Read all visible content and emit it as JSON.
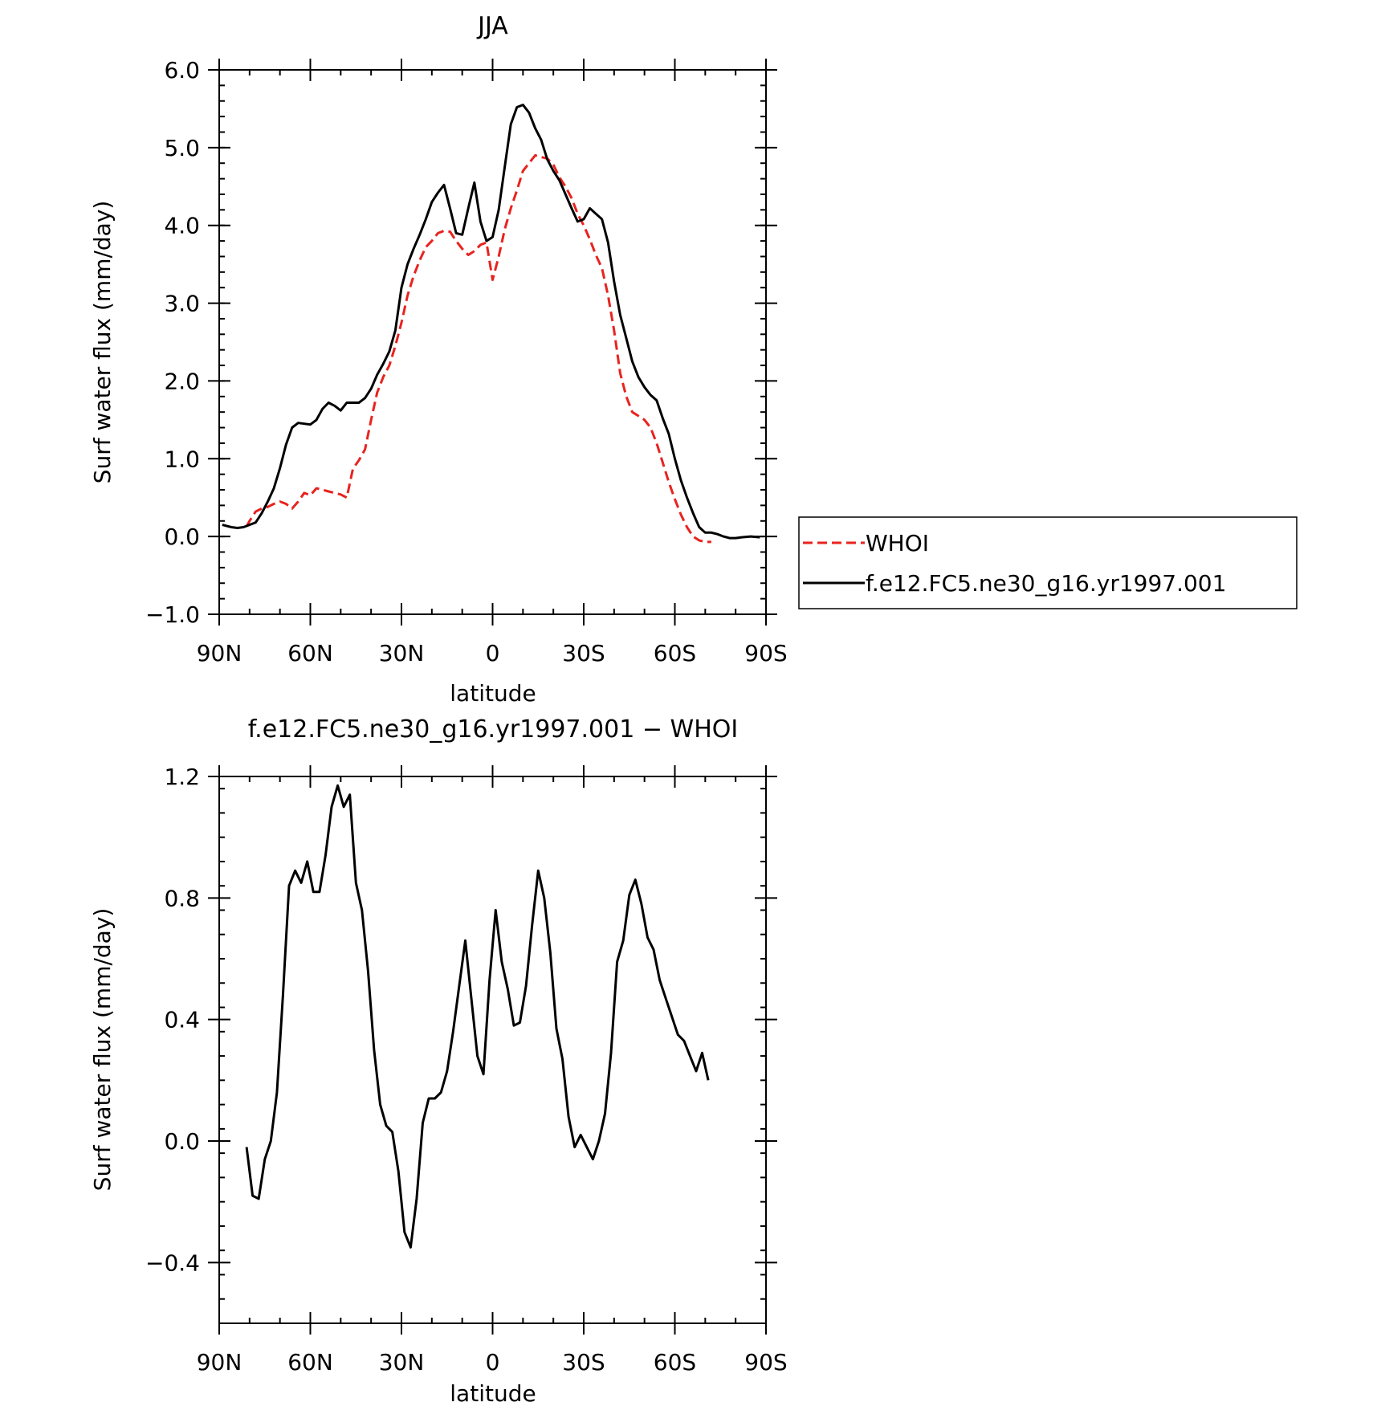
{
  "chart_data": [
    {
      "type": "line",
      "title": "JJA",
      "xlabel": "latitude",
      "ylabel": "Surf water flux (mm/day)",
      "xlim": [
        90,
        -90
      ],
      "ylim": [
        -1.0,
        6.0
      ],
      "xticks": [
        90,
        60,
        30,
        0,
        -30,
        -60,
        -90
      ],
      "xtick_labels": [
        "90N",
        "60N",
        "30N",
        "0",
        "30S",
        "60S",
        "90S"
      ],
      "yticks": [
        -1.0,
        0.0,
        1.0,
        2.0,
        3.0,
        4.0,
        5.0,
        6.0
      ],
      "ytick_labels": [
        "−1.0",
        "0.0",
        "1.0",
        "2.0",
        "3.0",
        "4.0",
        "5.0",
        "6.0"
      ],
      "legend": {
        "placement": "right"
      },
      "series": [
        {
          "name": "WHOI",
          "color": "#e8231f",
          "style": "dashed",
          "x": [
            81,
            80,
            78,
            76,
            74,
            72,
            70,
            68,
            66,
            64,
            62,
            60,
            58,
            56,
            54,
            52,
            50,
            48,
            46,
            44,
            42,
            40,
            38,
            36,
            34,
            32,
            30,
            28,
            26,
            24,
            22,
            20,
            18,
            16,
            14,
            12,
            10,
            8,
            6,
            4,
            2,
            0,
            -2,
            -4,
            -6,
            -8,
            -10,
            -12,
            -14,
            -16,
            -18,
            -20,
            -22,
            -24,
            -26,
            -28,
            -30,
            -32,
            -34,
            -36,
            -38,
            -40,
            -42,
            -44,
            -46,
            -48,
            -50,
            -52,
            -54,
            -56,
            -58,
            -60,
            -62,
            -64,
            -66,
            -68,
            -70,
            -72
          ],
          "values": [
            0.13,
            0.2,
            0.32,
            0.36,
            0.38,
            0.42,
            0.45,
            0.42,
            0.36,
            0.45,
            0.56,
            0.53,
            0.62,
            0.6,
            0.58,
            0.56,
            0.54,
            0.5,
            0.87,
            0.98,
            1.12,
            1.5,
            1.85,
            2.05,
            2.2,
            2.45,
            2.75,
            3.1,
            3.35,
            3.55,
            3.72,
            3.8,
            3.9,
            3.93,
            3.92,
            3.8,
            3.7,
            3.62,
            3.67,
            3.75,
            3.78,
            3.3,
            3.6,
            3.95,
            4.22,
            4.45,
            4.7,
            4.8,
            4.9,
            4.88,
            4.86,
            4.78,
            4.62,
            4.5,
            4.35,
            4.15,
            4.0,
            3.82,
            3.62,
            3.45,
            3.1,
            2.65,
            2.1,
            1.8,
            1.6,
            1.55,
            1.5,
            1.4,
            1.2,
            0.95,
            0.7,
            0.48,
            0.28,
            0.12,
            0.0,
            -0.05,
            -0.07,
            -0.07
          ]
        },
        {
          "name": "f.e12.FC5.ne30_g16.yr1997.001",
          "color": "#000000",
          "style": "solid",
          "x": [
            89,
            86,
            84,
            82,
            80,
            78,
            76,
            74,
            72,
            70,
            68,
            66,
            64,
            62,
            60,
            58,
            56,
            54,
            52,
            50,
            48,
            46,
            44,
            42,
            40,
            38,
            36,
            34,
            32,
            30,
            28,
            26,
            24,
            22,
            20,
            18,
            16,
            14,
            12,
            10,
            8,
            6,
            4,
            2,
            0,
            -2,
            -4,
            -6,
            -8,
            -10,
            -12,
            -14,
            -16,
            -18,
            -20,
            -22,
            -24,
            -26,
            -28,
            -30,
            -32,
            -34,
            -36,
            -38,
            -40,
            -42,
            -44,
            -46,
            -48,
            -50,
            -52,
            -54,
            -56,
            -58,
            -60,
            -62,
            -64,
            -66,
            -68,
            -70,
            -72,
            -74,
            -76,
            -78,
            -80,
            -82,
            -85,
            -88
          ],
          "values": [
            0.15,
            0.12,
            0.11,
            0.12,
            0.15,
            0.18,
            0.3,
            0.45,
            0.62,
            0.88,
            1.18,
            1.4,
            1.46,
            1.45,
            1.44,
            1.5,
            1.64,
            1.72,
            1.68,
            1.62,
            1.72,
            1.72,
            1.72,
            1.78,
            1.9,
            2.08,
            2.22,
            2.38,
            2.65,
            3.2,
            3.5,
            3.7,
            3.88,
            4.08,
            4.3,
            4.42,
            4.52,
            4.22,
            3.9,
            3.88,
            4.22,
            4.55,
            4.05,
            3.8,
            3.85,
            4.2,
            4.75,
            5.3,
            5.52,
            5.55,
            5.45,
            5.25,
            5.1,
            4.85,
            4.7,
            4.58,
            4.4,
            4.22,
            4.05,
            4.08,
            4.22,
            4.15,
            4.08,
            3.78,
            3.28,
            2.85,
            2.55,
            2.25,
            2.05,
            1.92,
            1.82,
            1.75,
            1.52,
            1.32,
            1.0,
            0.72,
            0.5,
            0.3,
            0.12,
            0.05,
            0.05,
            0.03,
            0.0,
            -0.02,
            -0.02,
            -0.01,
            0.0,
            -0.01
          ]
        }
      ]
    },
    {
      "type": "line",
      "title": "f.e12.FC5.ne30_g16.yr1997.001 − WHOI",
      "xlabel": "latitude",
      "ylabel": "Surf water flux (mm/day)",
      "xlim": [
        90,
        -90
      ],
      "ylim": [
        -0.6,
        1.2
      ],
      "xticks": [
        90,
        60,
        30,
        0,
        -30,
        -60,
        -90
      ],
      "xtick_labels": [
        "90N",
        "60N",
        "30N",
        "0",
        "30S",
        "60S",
        "90S"
      ],
      "yticks": [
        -0.4,
        0.0,
        0.4,
        0.8,
        1.2
      ],
      "ytick_labels": [
        "−0.4",
        "0.0",
        "0.4",
        "0.8",
        "1.2"
      ],
      "series": [
        {
          "color": "#000000",
          "style": "solid",
          "x": [
            81,
            79,
            77,
            75,
            73,
            71,
            69,
            67,
            65,
            63,
            61,
            59,
            57,
            55,
            53,
            51,
            49,
            47,
            45,
            43,
            41,
            39,
            37,
            35,
            33,
            31,
            29,
            27,
            25,
            23,
            21,
            19,
            17,
            15,
            13,
            11,
            9,
            7,
            5,
            3,
            1,
            -1,
            -3,
            -5,
            -7,
            -9,
            -11,
            -13,
            -15,
            -17,
            -19,
            -21,
            -23,
            -25,
            -27,
            -29,
            -31,
            -33,
            -35,
            -37,
            -39,
            -41,
            -43,
            -45,
            -47,
            -49,
            -51,
            -53,
            -55,
            -57,
            -59,
            -61,
            -63,
            -65,
            -67,
            -69,
            -71
          ],
          "values": [
            -0.02,
            -0.18,
            -0.19,
            -0.06,
            0.0,
            0.16,
            0.48,
            0.84,
            0.89,
            0.85,
            0.92,
            0.82,
            0.82,
            0.94,
            1.1,
            1.17,
            1.1,
            1.14,
            0.85,
            0.76,
            0.56,
            0.3,
            0.12,
            0.05,
            0.03,
            -0.1,
            -0.3,
            -0.35,
            -0.19,
            0.06,
            0.14,
            0.14,
            0.16,
            0.23,
            0.36,
            0.51,
            0.66,
            0.47,
            0.28,
            0.22,
            0.53,
            0.76,
            0.59,
            0.5,
            0.38,
            0.39,
            0.51,
            0.71,
            0.89,
            0.8,
            0.62,
            0.37,
            0.27,
            0.08,
            -0.02,
            0.02,
            -0.02,
            -0.06,
            0.0,
            0.09,
            0.29,
            0.59,
            0.66,
            0.81,
            0.86,
            0.78,
            0.67,
            0.63,
            0.53,
            0.47,
            0.41,
            0.35,
            0.33,
            0.28,
            0.23,
            0.29,
            0.2
          ]
        }
      ]
    }
  ]
}
